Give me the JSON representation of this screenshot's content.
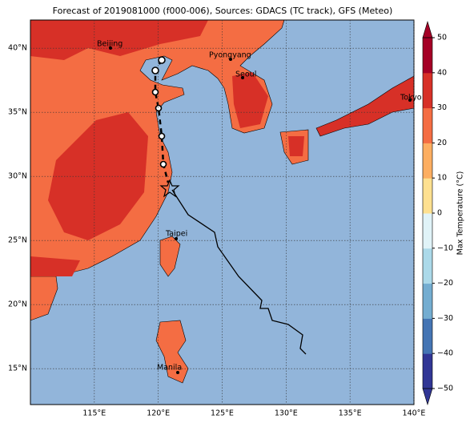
{
  "title": "Forecast of 2019081000 (f000-006), Sources: GDACS (TC track), GFS (Meteo)",
  "map": {
    "xlim": [
      110,
      140
    ],
    "ylim": [
      12.2,
      42.2
    ],
    "lon_ticks": [
      {
        "value": 115,
        "label": "115°E"
      },
      {
        "value": 120,
        "label": "120°E"
      },
      {
        "value": 125,
        "label": "125°E"
      },
      {
        "value": 130,
        "label": "130°E"
      },
      {
        "value": 135,
        "label": "135°E"
      },
      {
        "value": 140,
        "label": "140°E"
      }
    ],
    "lat_ticks": [
      {
        "value": 15,
        "label": "15°N"
      },
      {
        "value": 20,
        "label": "20°N"
      },
      {
        "value": 25,
        "label": "25°N"
      },
      {
        "value": 30,
        "label": "30°N"
      },
      {
        "value": 35,
        "label": "35°N"
      },
      {
        "value": 40,
        "label": "40°N"
      }
    ],
    "cities": [
      "Beijing",
      "Pyongyang",
      "Seoul",
      "Tokyo",
      "Taipei",
      "Manila"
    ]
  },
  "colorbar": {
    "label": "Max Temperature (°C)",
    "lim": [
      -50,
      50
    ],
    "ticks": [
      {
        "value": -50,
        "label": "−50"
      },
      {
        "value": -40,
        "label": "−40"
      },
      {
        "value": -30,
        "label": "−30"
      },
      {
        "value": -20,
        "label": "−20"
      },
      {
        "value": -10,
        "label": "−10"
      },
      0,
      10,
      20,
      30,
      40,
      50
    ],
    "colors": [
      "#313695",
      "#4575b4",
      "#74add1",
      "#abd9e9",
      "#e0f3f8",
      "#fee090",
      "#fdae61",
      "#f46d43",
      "#d73027",
      "#a50026"
    ]
  }
}
